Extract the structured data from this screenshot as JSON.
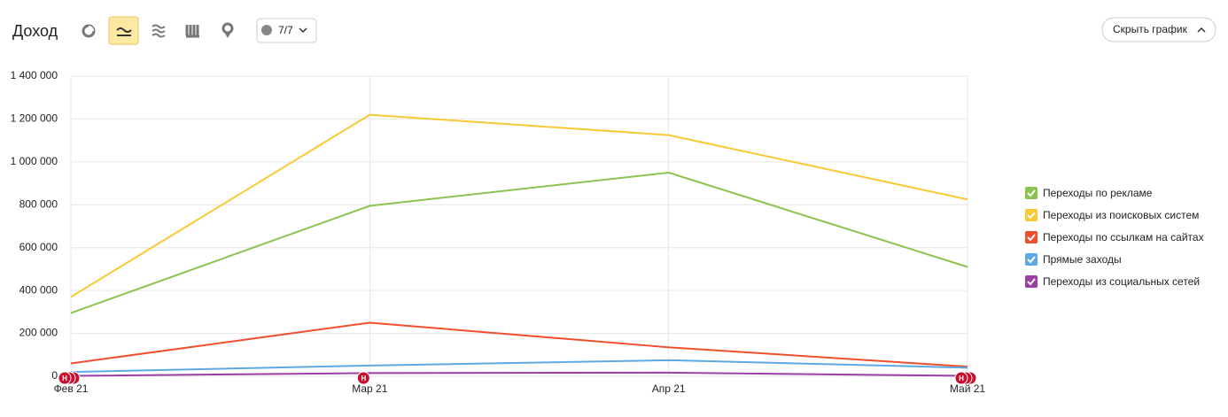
{
  "header": {
    "title": "Доход",
    "filter": "7/7",
    "hide_button": "Скрыть график"
  },
  "chart_data": {
    "type": "line",
    "categories": [
      "Фев 21",
      "Мар 21",
      "Апр 21",
      "Май 21"
    ],
    "series": [
      {
        "name": "Переходы по рекламе",
        "color": "#8cc350",
        "values": [
          295000,
          795000,
          950000,
          510000
        ]
      },
      {
        "name": "Переходы из поисковых систем",
        "color": "#f8c935",
        "values": [
          370000,
          1220000,
          1125000,
          825000
        ]
      },
      {
        "name": "Переходы по ссылкам на сайтах",
        "color": "#f04f2e",
        "values": [
          60000,
          250000,
          135000,
          45000
        ]
      },
      {
        "name": "Прямые заходы",
        "color": "#5ea9e2",
        "values": [
          20000,
          50000,
          75000,
          40000
        ]
      },
      {
        "name": "Переходы из социальных сетей",
        "color": "#9b3fa5",
        "values": [
          2000,
          15000,
          17000,
          2000
        ]
      }
    ],
    "ylim": [
      0,
      1400000
    ],
    "yticks": [
      0,
      {
        "value": 200000,
        "label": "200 000"
      },
      {
        "value": 400000,
        "label": "400 000"
      },
      {
        "value": 600000,
        "label": "600 000"
      },
      {
        "value": 800000,
        "label": "800 000"
      },
      {
        "value": 1000000,
        "label": "1 000 000"
      },
      {
        "value": 1200000,
        "label": "1 200 000"
      },
      {
        "value": 1400000,
        "label": "1 400 000"
      }
    ],
    "grid": true,
    "legend": "right",
    "annotation": "Н"
  }
}
